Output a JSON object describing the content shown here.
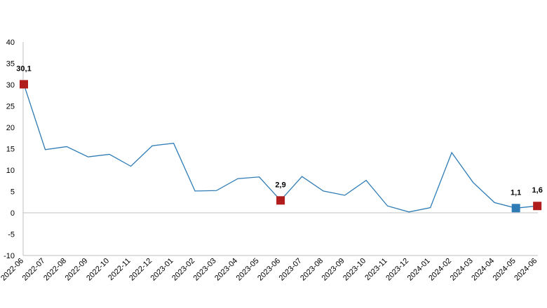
{
  "chart_data": {
    "type": "line",
    "categories": [
      "2022-06",
      "2022-07",
      "2022-08",
      "2022-09",
      "2022-10",
      "2022-11",
      "2022-12",
      "2023-01",
      "2023-02",
      "2023-03",
      "2023-04",
      "2023-05",
      "2023-06",
      "2023-07",
      "2023-08",
      "2023-09",
      "2023-10",
      "2023-11",
      "2023-12",
      "2024-01",
      "2024-02",
      "2024-03",
      "2024-04",
      "2024-05",
      "2024-06"
    ],
    "series": [
      {
        "values": [
          30.1,
          14.8,
          15.5,
          13.1,
          13.7,
          10.9,
          15.7,
          16.3,
          5.1,
          5.2,
          8.0,
          8.4,
          2.9,
          8.5,
          5.1,
          4.1,
          7.6,
          1.6,
          0.2,
          1.2,
          14.1,
          7.1,
          2.4,
          1.1,
          1.6
        ],
        "color": "#2e7bb5"
      }
    ],
    "highlighted_points": [
      {
        "index": 0,
        "label": "30,1",
        "color": "#b11c1c"
      },
      {
        "index": 12,
        "label": "2,9",
        "color": "#b11c1c"
      },
      {
        "index": 23,
        "label": "1,1",
        "color": "#2e7bb5"
      },
      {
        "index": 24,
        "label": "1,6",
        "color": "#b11c1c"
      }
    ],
    "ylim": [
      -10,
      40
    ],
    "yticks": [
      "40",
      "35",
      "30",
      "25",
      "20",
      "15",
      "10",
      "5",
      "0",
      "-5",
      "-10"
    ],
    "ytick_values": [
      40,
      35,
      30,
      25,
      20,
      15,
      10,
      5,
      0,
      -5,
      -10
    ],
    "title": "",
    "xlabel": "",
    "ylabel": "",
    "grid": false,
    "zero_line": true
  }
}
